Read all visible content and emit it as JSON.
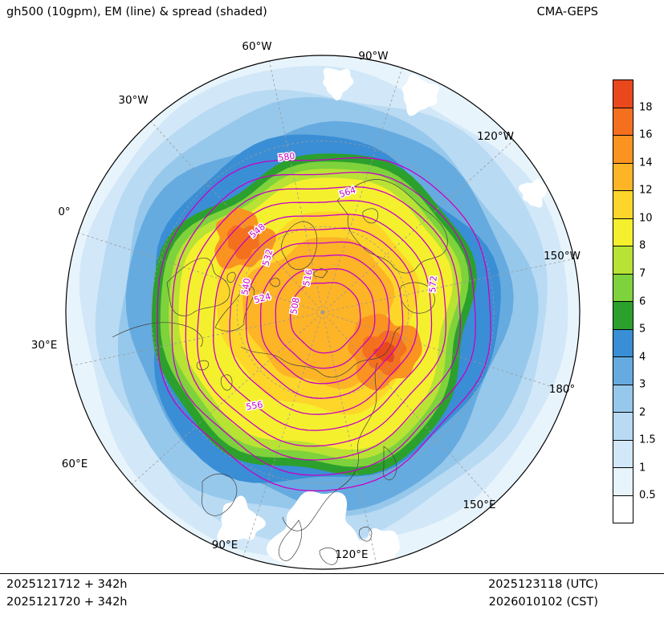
{
  "header": {
    "title": "gh500 (10gpm), EM (line) & spread (shaded)",
    "model": "CMA-GEPS"
  },
  "chart_data": {
    "type": "heatmap",
    "projection": "north-polar-stereographic",
    "title": "gh500 (10gpm), EM (line) & spread (shaded)",
    "model": "CMA-GEPS",
    "shaded_variable": "ensemble spread of 500hPa geopotential height",
    "line_variable": "ensemble mean 500hPa geopotential height (10gpm)",
    "contour_levels": [
      508,
      516,
      524,
      532,
      540,
      548,
      556,
      564,
      572,
      580
    ],
    "contour_interval": 8,
    "contour_color": "#c800c8",
    "contour_label_values": [
      "580",
      "564",
      "548",
      "532",
      "540",
      "524",
      "516",
      "508",
      "572",
      "556"
    ],
    "colorbar": {
      "tick_labels_top_to_bottom": [
        "18",
        "16",
        "14",
        "12",
        "10",
        "8",
        "7",
        "6",
        "5",
        "4",
        "3",
        "2",
        "1.5",
        "1",
        "0.5"
      ],
      "levels_ascending": [
        0.5,
        1,
        1.5,
        2,
        3,
        4,
        5,
        6,
        7,
        8,
        10,
        12,
        14,
        16,
        18
      ],
      "colors_top_to_bottom": [
        "#e8481c",
        "#f4701e",
        "#fa9320",
        "#fdb427",
        "#fed62a",
        "#f5f02e",
        "#b8e234",
        "#7ed23c",
        "#2ca02c",
        "#3a8ed5",
        "#66abdf",
        "#96c8ec",
        "#b8daf3",
        "#d2e8f8",
        "#e8f4fc",
        "#ffffff"
      ]
    },
    "longitude_labels": [
      "60°W",
      "90°W",
      "30°W",
      "120°W",
      "0°",
      "150°W",
      "30°E",
      "180°",
      "60°E",
      "150°E",
      "90°E",
      "120°E"
    ],
    "grid": "dashed graticule, meridians every 30 degrees, two latitude circles",
    "legend_position": "right colorbar"
  },
  "footer": {
    "left_lines": [
      "2025121712 + 342h",
      "2025121720 + 342h"
    ],
    "right_lines": [
      "2025123118 (UTC)",
      "2026010102 (CST)"
    ]
  }
}
